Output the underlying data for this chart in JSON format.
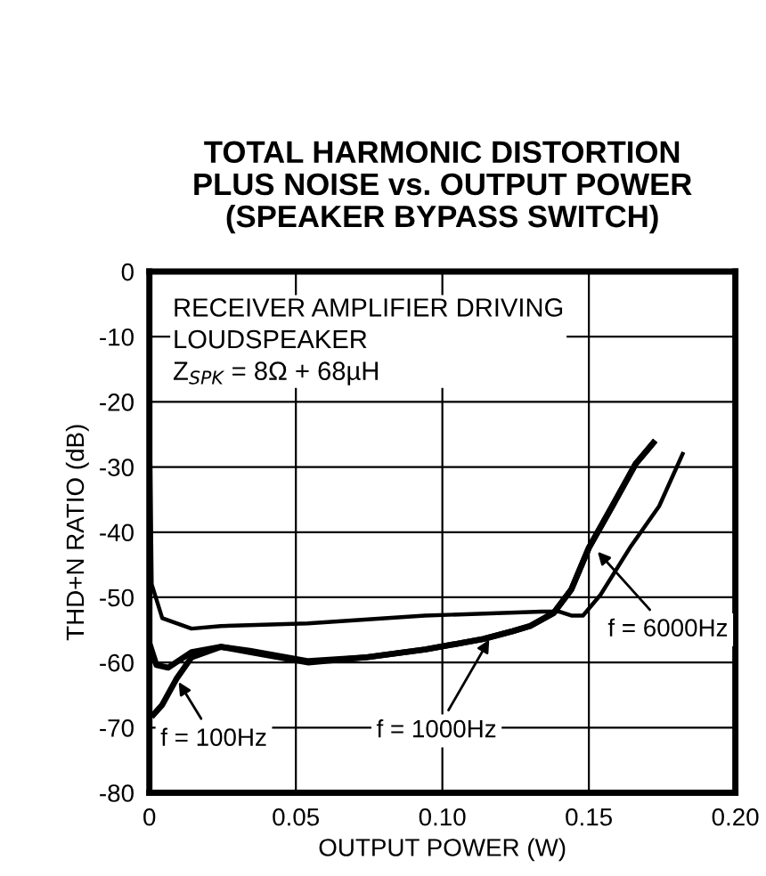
{
  "chart_data": {
    "type": "line",
    "title": "TOTAL HARMONIC DISTORTION\nPLUS NOISE vs. OUTPUT POWER\n(SPEAKER BYPASS SWITCH)",
    "xlabel": "OUTPUT POWER (W)",
    "ylabel": "THD+N RATIO (dB)",
    "xlim": [
      0,
      0.2
    ],
    "xticks": [
      0,
      0.05,
      {
        "value": 0.1,
        "label": "0.10"
      },
      0.15,
      {
        "value": 0.2,
        "label": "0.20"
      }
    ],
    "ylim": [
      -80,
      0
    ],
    "yticks": [
      -80,
      -70,
      -60,
      -50,
      -40,
      -30,
      -20,
      -10,
      0
    ],
    "grid": true,
    "marker": "none",
    "line_style": "solid",
    "series": [
      {
        "color": "#000000",
        "x": [
          0.0003,
          0.0008,
          0.0044,
          0.0144,
          0.0244,
          0.054,
          0.094,
          0.134,
          0.14,
          0.144,
          0.148,
          0.154,
          0.164,
          0.174,
          0.182
        ],
        "values": [
          -28,
          -48,
          -53.2,
          -54.8,
          -54.4,
          -54,
          -52.8,
          -52.2,
          -52.2,
          -52.8,
          -52.8,
          -49.6,
          -42.4,
          -36,
          -28
        ]
      },
      {
        "color": "#000000",
        "x": [
          0.0004,
          0.0024,
          0.0064,
          0.0144,
          0.0244,
          0.0343,
          0.0543,
          0.0743,
          0.0942,
          0.114,
          0.124,
          0.13,
          0.138,
          0.144,
          0.15,
          0.158,
          0.166,
          0.172
        ],
        "values": [
          -57.6,
          -60.4,
          -60.8,
          -58.4,
          -57.6,
          -58.4,
          -60,
          -59.2,
          -58,
          -56.4,
          -55.2,
          -54.4,
          -52.4,
          -48.8,
          -42.4,
          -36,
          -29.5,
          -26.3
        ]
      },
      {
        "color": "#000000",
        "x": [
          0.0014,
          0.0044,
          0.0094,
          0.0144,
          0.0244,
          0.0343,
          0.0543,
          0.0743,
          0.0942,
          0.114,
          0.124,
          0.13,
          0.138,
          0.144,
          0.15,
          0.158,
          0.166,
          0.172
        ],
        "values": [
          -68,
          -66.5,
          -62.4,
          -59.2,
          -57.6,
          -58.2,
          -59.8,
          -59.2,
          -58,
          -56.4,
          -55.2,
          -54.4,
          -52.4,
          -48.8,
          -42.4,
          -36,
          -29.5,
          -26.3
        ]
      }
    ],
    "annotations": [
      "RECEIVER AMPLIFIER DRIVING\nLOUDSPEAKER\nZ$_{SPK}$ = 8Ω + 68µH",
      {
        "text": "f = 100Hz",
        "x": 0.01,
        "y": -63
      },
      {
        "text": "f = 1000Hz",
        "x": 0.116,
        "y": -56.5
      },
      {
        "text": "f = 6000Hz",
        "x": 0.153,
        "y": -43
      }
    ]
  }
}
